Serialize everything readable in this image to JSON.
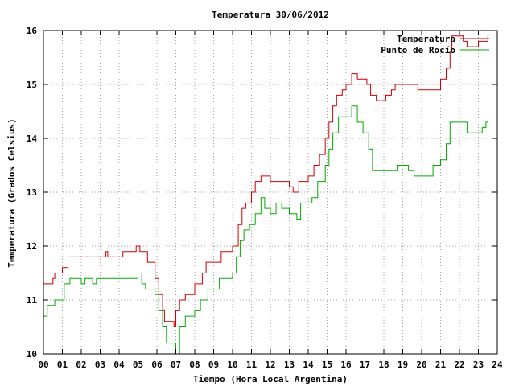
{
  "chart_data": {
    "type": "line",
    "title": "Temperatura 30/06/2012",
    "xlabel": "Tiempo (Hora Local Argentina)",
    "ylabel": "Temperatura (Grados Celsius)",
    "xlim": [
      0,
      24
    ],
    "ylim": [
      10,
      16
    ],
    "x_ticks": [
      "00",
      "01",
      "02",
      "03",
      "04",
      "05",
      "06",
      "07",
      "08",
      "09",
      "10",
      "11",
      "12",
      "13",
      "14",
      "15",
      "16",
      "17",
      "18",
      "19",
      "20",
      "21",
      "22",
      "23",
      "24"
    ],
    "y_ticks": [
      10,
      11,
      12,
      13,
      14,
      15,
      16
    ],
    "grid": true,
    "legend_position": "top-right",
    "series": [
      {
        "name": "Temperatura",
        "color": "#cc0000",
        "points": [
          [
            0,
            11.3
          ],
          [
            0.5,
            11.4
          ],
          [
            0.6,
            11.5
          ],
          [
            1.0,
            11.6
          ],
          [
            1.3,
            11.8
          ],
          [
            3.3,
            11.9
          ],
          [
            3.4,
            11.8
          ],
          [
            4.2,
            11.9
          ],
          [
            4.9,
            12.0
          ],
          [
            5.1,
            11.9
          ],
          [
            5.5,
            11.7
          ],
          [
            5.9,
            11.4
          ],
          [
            6.1,
            11.1
          ],
          [
            6.3,
            10.8
          ],
          [
            6.4,
            10.6
          ],
          [
            6.9,
            10.5
          ],
          [
            7.0,
            10.8
          ],
          [
            7.2,
            11.0
          ],
          [
            7.5,
            11.1
          ],
          [
            8.0,
            11.3
          ],
          [
            8.4,
            11.5
          ],
          [
            8.6,
            11.7
          ],
          [
            9.4,
            11.9
          ],
          [
            10.0,
            12.0
          ],
          [
            10.3,
            12.4
          ],
          [
            10.5,
            12.7
          ],
          [
            10.7,
            12.8
          ],
          [
            11.0,
            13.0
          ],
          [
            11.2,
            13.2
          ],
          [
            11.5,
            13.3
          ],
          [
            12.0,
            13.2
          ],
          [
            12.5,
            13.2
          ],
          [
            13.0,
            13.1
          ],
          [
            13.2,
            13.0
          ],
          [
            13.5,
            13.2
          ],
          [
            14.0,
            13.3
          ],
          [
            14.3,
            13.5
          ],
          [
            14.6,
            13.7
          ],
          [
            14.9,
            14.0
          ],
          [
            15.1,
            14.3
          ],
          [
            15.3,
            14.6
          ],
          [
            15.5,
            14.8
          ],
          [
            15.8,
            14.9
          ],
          [
            16.0,
            15.0
          ],
          [
            16.3,
            15.2
          ],
          [
            16.6,
            15.1
          ],
          [
            17.1,
            15.0
          ],
          [
            17.3,
            14.8
          ],
          [
            17.6,
            14.7
          ],
          [
            18.1,
            14.8
          ],
          [
            18.4,
            14.9
          ],
          [
            18.6,
            15.0
          ],
          [
            19.1,
            15.0
          ],
          [
            19.5,
            15.0
          ],
          [
            19.8,
            14.9
          ],
          [
            20.6,
            14.9
          ],
          [
            21.0,
            15.1
          ],
          [
            21.3,
            15.3
          ],
          [
            21.5,
            15.6
          ],
          [
            21.6,
            15.9
          ],
          [
            22.2,
            15.8
          ],
          [
            22.4,
            15.7
          ],
          [
            23.0,
            15.8
          ],
          [
            23.5,
            15.9
          ]
        ]
      },
      {
        "name": "Punto de Rocío",
        "color": "#00aa00",
        "points": [
          [
            0,
            10.7
          ],
          [
            0.2,
            10.9
          ],
          [
            0.4,
            10.9
          ],
          [
            0.6,
            11.0
          ],
          [
            1.1,
            11.3
          ],
          [
            1.4,
            11.4
          ],
          [
            2.0,
            11.3
          ],
          [
            2.2,
            11.4
          ],
          [
            2.6,
            11.3
          ],
          [
            2.8,
            11.4
          ],
          [
            3.0,
            11.4
          ],
          [
            4.0,
            11.4
          ],
          [
            4.9,
            11.4
          ],
          [
            5.0,
            11.5
          ],
          [
            5.2,
            11.3
          ],
          [
            5.4,
            11.2
          ],
          [
            5.9,
            11.1
          ],
          [
            6.1,
            10.8
          ],
          [
            6.3,
            10.5
          ],
          [
            6.5,
            10.2
          ],
          [
            7.0,
            10.0
          ],
          [
            7.2,
            10.5
          ],
          [
            7.5,
            10.7
          ],
          [
            8.0,
            10.8
          ],
          [
            8.3,
            11.0
          ],
          [
            8.7,
            11.2
          ],
          [
            9.3,
            11.4
          ],
          [
            10.0,
            11.5
          ],
          [
            10.2,
            11.8
          ],
          [
            10.4,
            12.1
          ],
          [
            10.6,
            12.3
          ],
          [
            10.9,
            12.4
          ],
          [
            11.2,
            12.6
          ],
          [
            11.5,
            12.9
          ],
          [
            11.7,
            12.7
          ],
          [
            12.0,
            12.6
          ],
          [
            12.3,
            12.8
          ],
          [
            12.6,
            12.7
          ],
          [
            13.0,
            12.6
          ],
          [
            13.4,
            12.5
          ],
          [
            13.6,
            12.8
          ],
          [
            14.0,
            12.8
          ],
          [
            14.2,
            12.9
          ],
          [
            14.5,
            13.2
          ],
          [
            14.9,
            13.5
          ],
          [
            15.1,
            13.8
          ],
          [
            15.3,
            14.1
          ],
          [
            15.6,
            14.4
          ],
          [
            16.0,
            14.4
          ],
          [
            16.3,
            14.6
          ],
          [
            16.6,
            14.3
          ],
          [
            16.9,
            14.1
          ],
          [
            17.2,
            13.8
          ],
          [
            17.4,
            13.4
          ],
          [
            17.8,
            13.4
          ],
          [
            18.3,
            13.4
          ],
          [
            18.7,
            13.5
          ],
          [
            19.3,
            13.4
          ],
          [
            19.6,
            13.3
          ],
          [
            20.3,
            13.3
          ],
          [
            20.6,
            13.5
          ],
          [
            21.0,
            13.6
          ],
          [
            21.3,
            13.9
          ],
          [
            21.5,
            14.3
          ],
          [
            21.8,
            14.3
          ],
          [
            22.2,
            14.3
          ],
          [
            22.4,
            14.1
          ],
          [
            23.0,
            14.1
          ],
          [
            23.2,
            14.2
          ],
          [
            23.4,
            14.3
          ],
          [
            23.5,
            14.3
          ]
        ]
      }
    ]
  }
}
